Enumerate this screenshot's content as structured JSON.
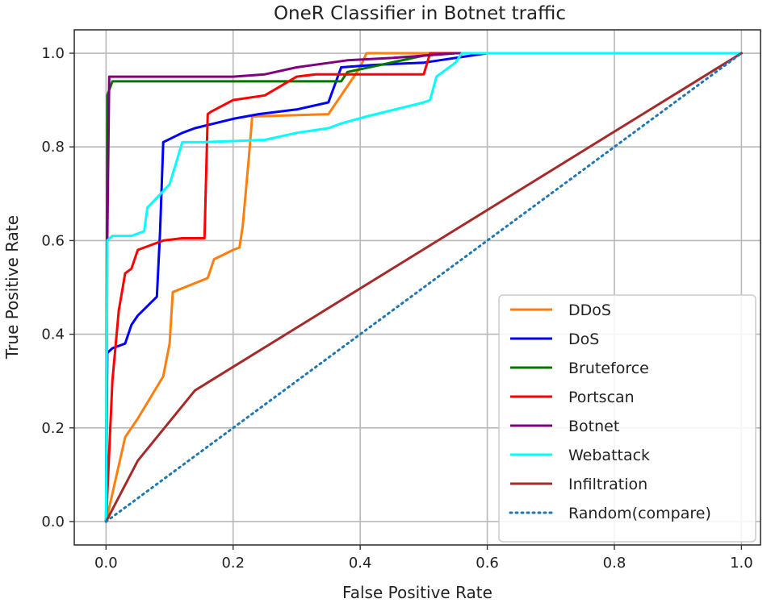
{
  "chart_data": {
    "type": "line",
    "title": "OneR Classifier in Botnet traffic",
    "xlabel": "False Positive Rate",
    "ylabel": "True Positive Rate",
    "xlim": [
      -0.05,
      1.03
    ],
    "ylim": [
      -0.05,
      1.05
    ],
    "xticks": [
      0.0,
      0.2,
      0.4,
      0.6,
      0.8,
      1.0
    ],
    "xtick_labels": [
      "0.0",
      "0.2",
      "0.4",
      "0.6",
      "0.8",
      "1.0"
    ],
    "yticks": [
      0.0,
      0.2,
      0.4,
      0.6,
      0.8,
      1.0
    ],
    "ytick_labels": [
      "0.0",
      "0.2",
      "0.4",
      "0.6",
      "0.8",
      "1.0"
    ],
    "grid": true,
    "legend_position": "lower-right",
    "series": [
      {
        "name": "DDoS",
        "color": "#ff7f0e",
        "style": "solid",
        "x": [
          0,
          0.03,
          0.05,
          0.09,
          0.1,
          0.105,
          0.16,
          0.17,
          0.2,
          0.21,
          0.215,
          0.225,
          0.23,
          0.35,
          0.4,
          0.41,
          0.5,
          0.55,
          1.0
        ],
        "y": [
          0,
          0.18,
          0.22,
          0.31,
          0.38,
          0.49,
          0.52,
          0.56,
          0.58,
          0.585,
          0.63,
          0.78,
          0.865,
          0.87,
          0.97,
          1.0,
          1.0,
          1.0,
          1.0
        ]
      },
      {
        "name": "DoS",
        "color": "#0000ff",
        "style": "solid",
        "x": [
          0,
          0.002,
          0.01,
          0.03,
          0.04,
          0.05,
          0.08,
          0.085,
          0.09,
          0.12,
          0.14,
          0.2,
          0.24,
          0.3,
          0.35,
          0.37,
          0.42,
          0.5,
          0.6,
          1.0
        ],
        "y": [
          0,
          0.36,
          0.37,
          0.38,
          0.42,
          0.44,
          0.48,
          0.62,
          0.81,
          0.83,
          0.84,
          0.86,
          0.87,
          0.88,
          0.895,
          0.97,
          0.975,
          0.98,
          1.0,
          1.0
        ]
      },
      {
        "name": "Bruteforce",
        "color": "#007700",
        "style": "solid",
        "x": [
          0,
          0.002,
          0.01,
          0.1,
          0.37,
          0.38,
          0.5,
          0.55,
          1.0
        ],
        "y": [
          0,
          0.91,
          0.94,
          0.94,
          0.94,
          0.96,
          0.995,
          1.0,
          1.0
        ]
      },
      {
        "name": "Portscan",
        "color": "#ff0000",
        "style": "solid",
        "x": [
          0,
          0.01,
          0.02,
          0.03,
          0.04,
          0.05,
          0.09,
          0.12,
          0.155,
          0.16,
          0.165,
          0.2,
          0.25,
          0.3,
          0.33,
          0.37,
          0.5,
          0.51,
          1.0
        ],
        "y": [
          0,
          0.3,
          0.45,
          0.53,
          0.54,
          0.58,
          0.6,
          0.605,
          0.605,
          0.87,
          0.875,
          0.9,
          0.91,
          0.95,
          0.955,
          0.955,
          0.955,
          1.0,
          1.0
        ]
      },
      {
        "name": "Botnet",
        "color": "#800080",
        "style": "solid",
        "x": [
          0,
          0.002,
          0.005,
          0.1,
          0.2,
          0.25,
          0.3,
          0.38,
          0.45,
          0.55,
          0.6,
          0.65,
          1.0
        ],
        "y": [
          0,
          0.6,
          0.95,
          0.95,
          0.95,
          0.955,
          0.97,
          0.985,
          0.99,
          1.0,
          1.0,
          1.0,
          1.0
        ]
      },
      {
        "name": "Webattack",
        "color": "#00ffff",
        "style": "solid",
        "x": [
          0,
          0.002,
          0.01,
          0.04,
          0.06,
          0.065,
          0.1,
          0.12,
          0.15,
          0.25,
          0.3,
          0.35,
          0.37,
          0.41,
          0.5,
          0.51,
          0.52,
          0.55,
          0.56,
          1.0
        ],
        "y": [
          0,
          0.6,
          0.61,
          0.61,
          0.62,
          0.67,
          0.72,
          0.81,
          0.81,
          0.815,
          0.83,
          0.84,
          0.85,
          0.865,
          0.895,
          0.9,
          0.95,
          0.98,
          1.0,
          1.0
        ]
      },
      {
        "name": "Infiltration",
        "color": "#a52a2a",
        "style": "solid",
        "x": [
          0,
          0.05,
          0.14,
          1.0
        ],
        "y": [
          0,
          0.13,
          0.28,
          1.0
        ]
      },
      {
        "name": "Random(compare)",
        "color": "#1f77b4",
        "style": "dotted",
        "x": [
          0,
          1.0
        ],
        "y": [
          0,
          1.0
        ]
      }
    ]
  }
}
